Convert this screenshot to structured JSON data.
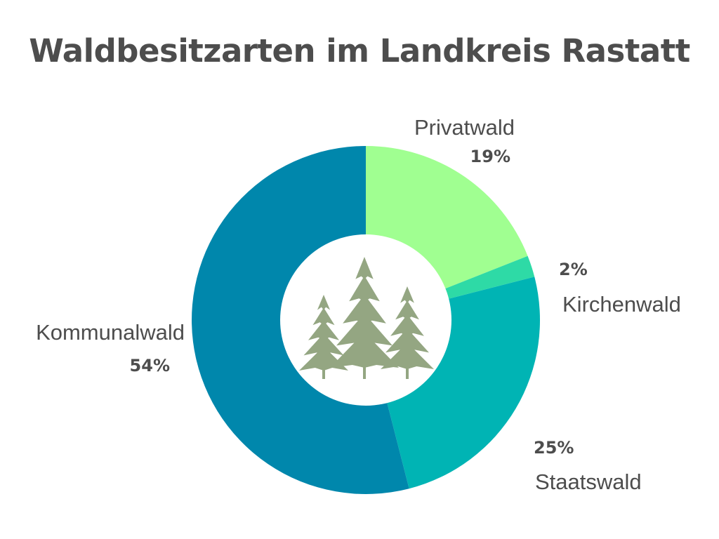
{
  "title": "Waldbesitzarten im Landkreis Rastatt",
  "chart_data": {
    "type": "pie",
    "variant": "donut",
    "title": "Waldbesitzarten im Landkreis Rastatt",
    "start_angle_deg": 0,
    "direction": "clockwise",
    "center_image": "forest-trees-icon",
    "slices": [
      {
        "key": "privatwald",
        "label": "Privatwald",
        "value": 19,
        "value_label": "19%",
        "color": "#a0ff91"
      },
      {
        "key": "kirchenwald",
        "label": "Kirchenwald",
        "value": 2,
        "value_label": "2%",
        "color": "#2edaa6"
      },
      {
        "key": "staatswald",
        "label": "Staatswald",
        "value": 25,
        "value_label": "25%",
        "color": "#00b4b4"
      },
      {
        "key": "kommunalwald",
        "label": "Kommunalwald",
        "value": 54,
        "value_label": "54%",
        "color": "#0087ac"
      }
    ]
  },
  "colors": {
    "text": "#4d4d4d",
    "trees": "#94a682"
  }
}
